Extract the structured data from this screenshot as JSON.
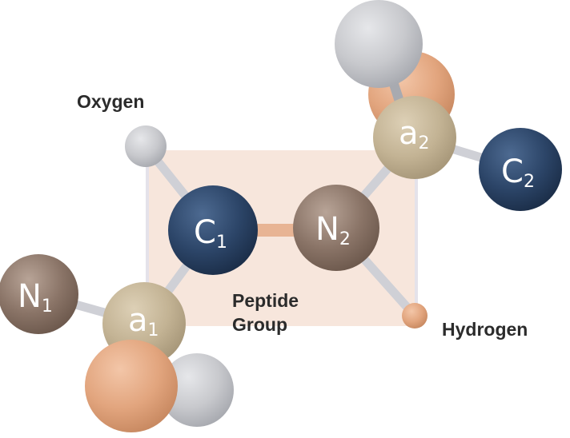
{
  "labels": {
    "oxygen": "Oxygen",
    "hydrogen": "Hydrogen",
    "peptide_line1": "Peptide",
    "peptide_line2": "Group"
  },
  "atoms": {
    "n1": {
      "symbol": "N",
      "sub": "1"
    },
    "a1": {
      "symbol": "a",
      "sub": "1"
    },
    "c1": {
      "symbol": "C",
      "sub": "1"
    },
    "n2": {
      "symbol": "N",
      "sub": "2"
    },
    "a2": {
      "symbol": "a",
      "sub": "2"
    },
    "c2": {
      "symbol": "C",
      "sub": "2"
    }
  },
  "colors": {
    "peptide_plane": "#f7e6dc",
    "plane_edge": "#e4e2ea",
    "bond": "#cfd0d6",
    "peptide_bond": "#e8b494",
    "nitrogen": "#8a7467",
    "alpha_carbon": "#c3b394",
    "carbon": "#2c4568",
    "hydrogen": "#e2a57e",
    "grey_atom": "#c8c9cd"
  }
}
